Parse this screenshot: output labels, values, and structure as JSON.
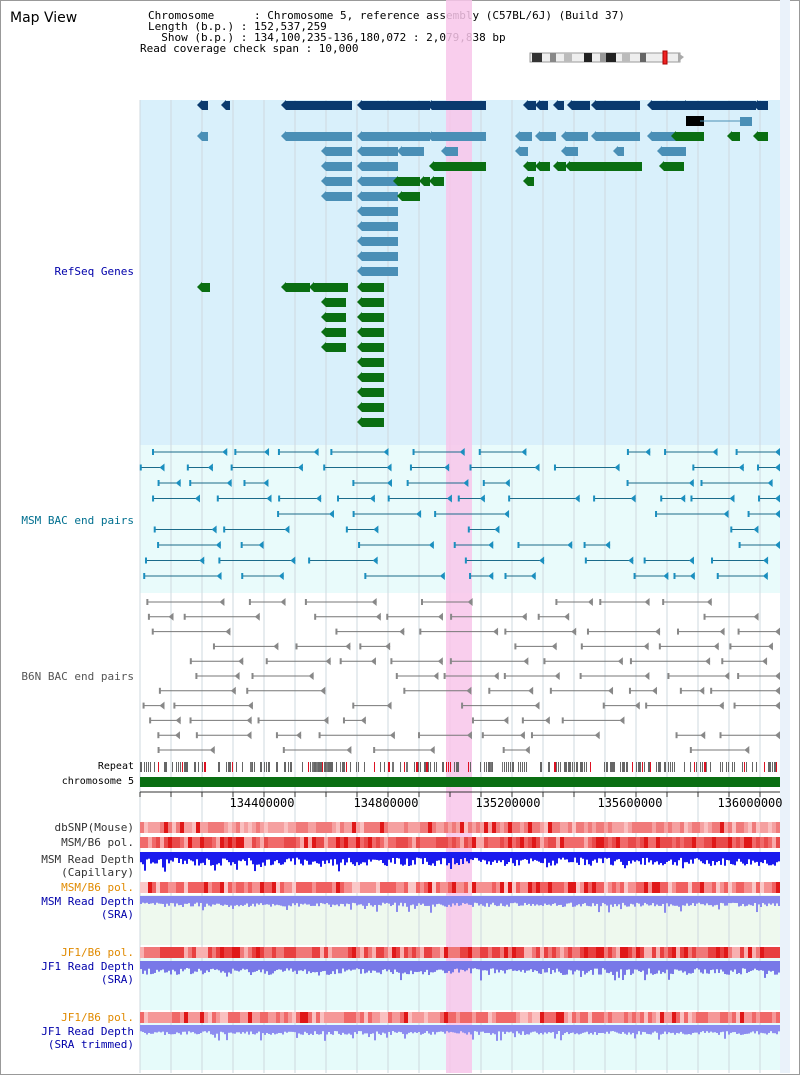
{
  "header": {
    "title": "Map View",
    "chromosome_line": "Chromosome      : Chromosome 5, reference assembly (C57BL/6J) (Build 37)",
    "length_line": "Length (b.p.) : 152,537,259",
    "show_line": "  Show (b.p.) : 134,100,235-136,180,072 : 2,079,838 bp",
    "coverage_line": "Read coverage check span : 10,000"
  },
  "tracks": {
    "refseq": "RefSeq Genes",
    "msm_bac": "MSM BAC end pairs",
    "b6n_bac": "B6N BAC end pairs",
    "repeat": "Repeat",
    "chromosome": "chromosome 5",
    "dbsnp": "dbSNP(Mouse)",
    "msm_pol": "MSM/B6 pol.",
    "msm_depth_cap": "MSM Read Depth\n(Capillary)",
    "msm_pol_sra": "MSM/B6 pol.",
    "msm_depth_sra": "MSM Read Depth\n(SRA)",
    "jf1_pol": "JF1/B6 pol.",
    "jf1_depth": "JF1 Read Depth\n(SRA)",
    "jf1_pol_trim": "JF1/B6 pol.",
    "jf1_depth_trim": "JF1 Read Depth\n(SRA trimmed)"
  },
  "axis": {
    "ticks": [
      "134400000",
      "134800000",
      "135200000",
      "135600000",
      "136000000"
    ]
  },
  "colors": {
    "label_blue": "#0000aa",
    "label_teal": "#006f8f",
    "label_gray": "#555555",
    "label_orange": "#e08a00",
    "highlight": "#f8c6ea",
    "gene_dark": "#0a3a6e",
    "gene_mid": "#4a8fb6",
    "gene_green": "#0a6e12"
  }
}
